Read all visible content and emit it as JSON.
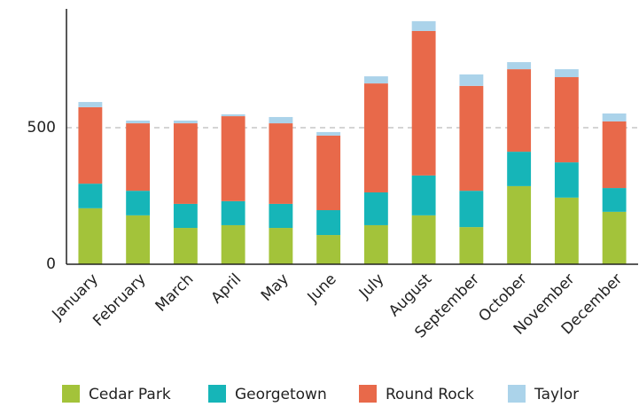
{
  "chart_data": {
    "type": "stacked_bar",
    "categories": [
      "January",
      "February",
      "March",
      "April",
      "May",
      "June",
      "July",
      "August",
      "September",
      "October",
      "November",
      "December"
    ],
    "series": [
      {
        "name": "Cedar Park",
        "color": "#a3c33a",
        "values": [
          205,
          179,
          133,
          143,
          133,
          107,
          143,
          179,
          136,
          286,
          244,
          192
        ]
      },
      {
        "name": "Georgetown",
        "color": "#16b5b8",
        "values": [
          90,
          90,
          88,
          88,
          88,
          91,
          120,
          146,
          133,
          126,
          129,
          87
        ]
      },
      {
        "name": "Round Rock",
        "color": "#e8694a",
        "values": [
          280,
          247,
          295,
          311,
          295,
          273,
          399,
          529,
          384,
          302,
          312,
          244
        ]
      },
      {
        "name": "Taylor",
        "color": "#abd3ea",
        "values": [
          19,
          10,
          10,
          7,
          23,
          13,
          26,
          36,
          42,
          26,
          29,
          29
        ]
      }
    ],
    "ylim": [
      0,
      935
    ],
    "yticks": [
      0,
      500
    ],
    "grid": true,
    "legend": "bottom"
  }
}
